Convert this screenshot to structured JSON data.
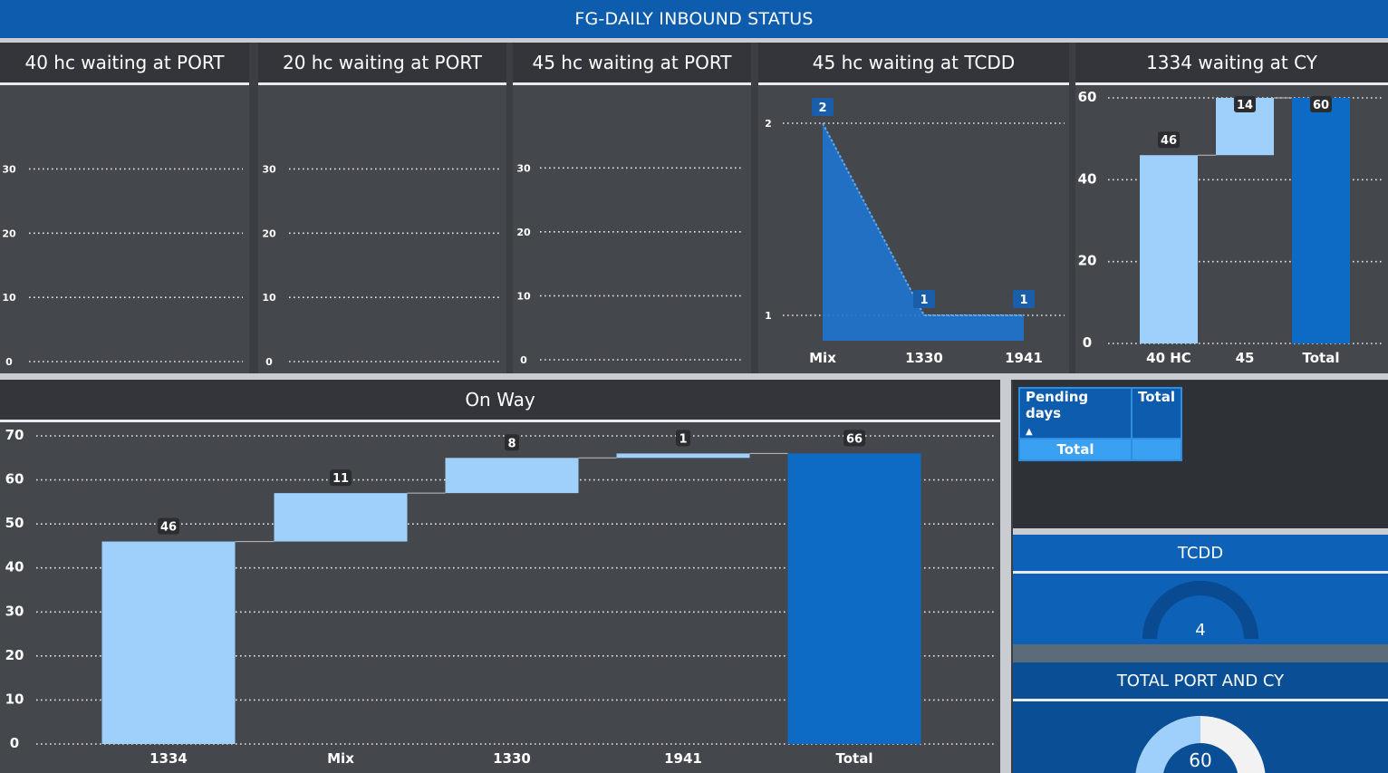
{
  "header": {
    "title": "FG-DAILY INBOUND STATUS"
  },
  "panels": {
    "p40": {
      "title": "40 hc waiting at PORT"
    },
    "p20": {
      "title": "20 hc waiting at PORT"
    },
    "p45": {
      "title": "45 hc waiting at PORT"
    },
    "tcdd45": {
      "title": "45 hc waiting at TCDD"
    },
    "cy1334": {
      "title": "1334 waiting at CY"
    },
    "onway": {
      "title": "On Way"
    }
  },
  "pending_table": {
    "col1": "Pending days",
    "col2": "Total",
    "row_label": "Total",
    "row_value": ""
  },
  "tcdd_card": {
    "title": "TCDD",
    "value": "4",
    "fill_fraction": 1.0
  },
  "total_card": {
    "title": "TOTAL PORT AND CY",
    "value": "60",
    "fill_fraction": 0.5
  },
  "colors": {
    "light_bar": "#9fd0fc",
    "dark_bar": "#0d6bc5",
    "header": "#0d5cae",
    "area": "#1e74d0"
  },
  "chart_data": [
    {
      "id": "p40",
      "type": "bar",
      "title": "40 hc waiting at PORT",
      "yticks": [
        "0",
        "10",
        "20",
        "30"
      ],
      "ylim": [
        0,
        35
      ],
      "categories": [],
      "values": []
    },
    {
      "id": "p20",
      "type": "bar",
      "title": "20 hc waiting at PORT",
      "yticks": [
        "0",
        "10",
        "20",
        "30"
      ],
      "ylim": [
        0,
        35
      ],
      "categories": [],
      "values": []
    },
    {
      "id": "p45",
      "type": "bar",
      "title": "45 hc waiting at PORT",
      "yticks": [
        "0",
        "10",
        "20",
        "30"
      ],
      "ylim": [
        0,
        35
      ],
      "categories": [],
      "values": []
    },
    {
      "id": "tcdd45",
      "type": "area",
      "title": "45 hc waiting at TCDD",
      "yticks": [
        "1",
        "2"
      ],
      "ylim": [
        1,
        2
      ],
      "categories": [
        "Mix",
        "1330",
        "1941"
      ],
      "values": [
        2,
        1,
        1
      ]
    },
    {
      "id": "cy1334",
      "type": "bar",
      "title": "1334 waiting at CY",
      "waterfall": true,
      "yticks": [
        "0",
        "20",
        "40",
        "60"
      ],
      "ylim": [
        0,
        60
      ],
      "categories": [
        "40 HC",
        "45",
        "Total"
      ],
      "values": [
        46,
        14,
        60
      ]
    },
    {
      "id": "onway",
      "type": "bar",
      "title": "On Way",
      "waterfall": true,
      "yticks": [
        "0",
        "10",
        "20",
        "30",
        "40",
        "50",
        "60",
        "70"
      ],
      "ylim": [
        0,
        70
      ],
      "categories": [
        "1334",
        "Mix",
        "1330",
        "1941",
        "Total"
      ],
      "values": [
        46,
        11,
        8,
        1,
        66
      ]
    }
  ]
}
